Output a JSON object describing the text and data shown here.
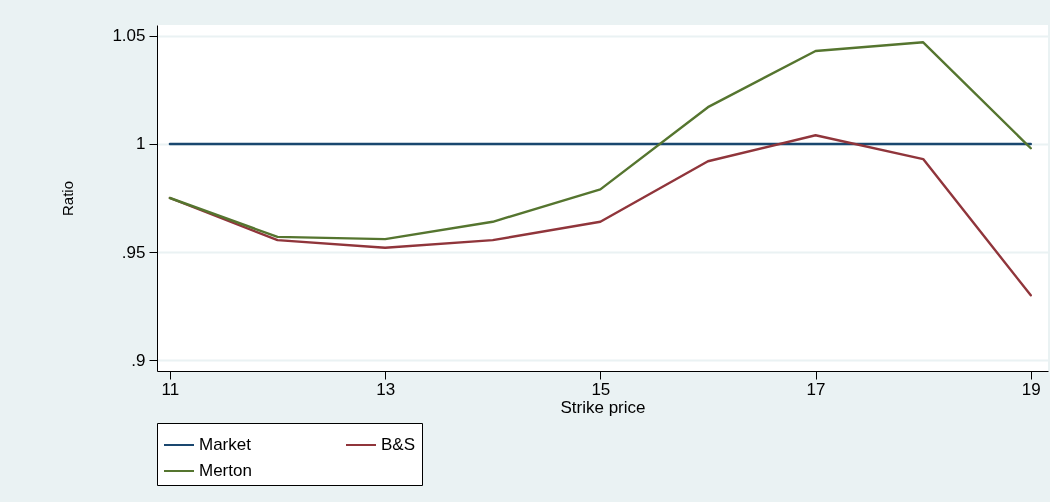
{
  "chart_data": {
    "type": "line",
    "xlabel": "Strike price",
    "ylabel": "Ratio",
    "x": [
      11,
      12,
      13,
      14,
      15,
      16,
      17,
      18,
      19
    ],
    "series": [
      {
        "name": "Market",
        "color": "#1a476f",
        "values": [
          1,
          1,
          1,
          1,
          1,
          1,
          1,
          1,
          1
        ]
      },
      {
        "name": "B&S",
        "color": "#90353b",
        "values": [
          0.975,
          0.9555,
          0.952,
          0.9555,
          0.964,
          0.992,
          1.004,
          0.993,
          0.93
        ]
      },
      {
        "name": "Merton",
        "color": "#55752f",
        "values": [
          0.975,
          0.957,
          0.956,
          0.964,
          0.979,
          1.017,
          1.043,
          1.047,
          0.998
        ]
      }
    ],
    "xlim": [
      10.88,
      19.16
    ],
    "xticks": [
      11,
      13,
      15,
      17,
      19
    ],
    "ylim": [
      0.895,
      1.055
    ],
    "yticks": [
      {
        "value": 0.9,
        "label": ".9"
      },
      {
        "value": 0.95,
        "label": ".95"
      },
      1,
      1.05
    ],
    "grid": "y",
    "legend": "bottom",
    "marker": "none",
    "line_style": "solid"
  }
}
